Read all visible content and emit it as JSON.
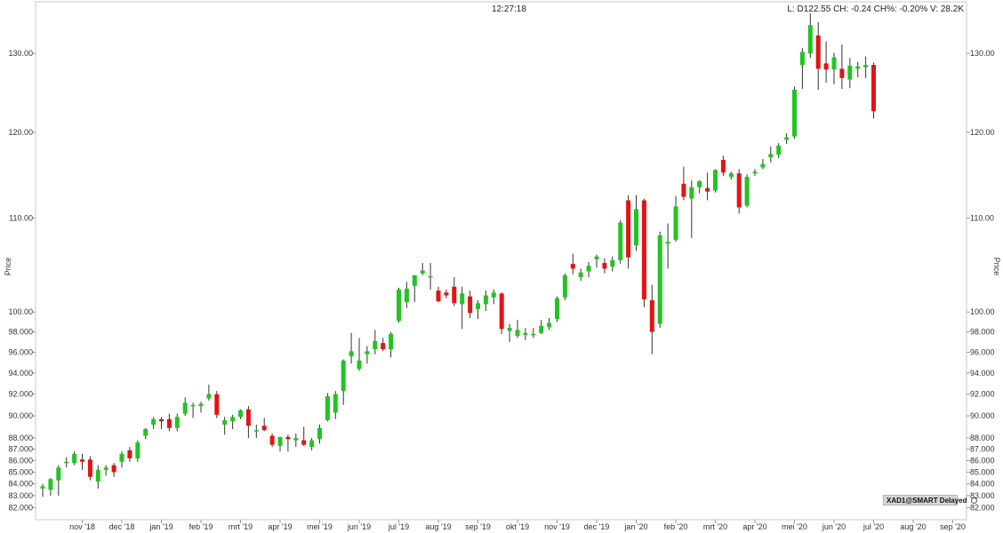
{
  "header": {
    "time": "12:27:18",
    "quote": "L: D122.55 CH: -0.24 CH%: -0.20% V: 28.2K"
  },
  "badge": {
    "label": "XAD1@SMART Delayed",
    "icon": "settings-icon"
  },
  "colors": {
    "up": "#22c422",
    "down": "#e21414",
    "wick": "#333333",
    "grid_border": "#c8c8c8"
  },
  "chart_data": {
    "type": "candlestick",
    "ylabel_left": "Price",
    "ylabel_right": "Price",
    "y_scale": "log",
    "ylim": [
      81.0,
      137.0
    ],
    "y_ticks": [
      {
        "v": 130,
        "label": "130.00"
      },
      {
        "v": 120,
        "label": "120.00"
      },
      {
        "v": 110,
        "label": "110.00"
      },
      {
        "v": 100,
        "label": "100.00"
      },
      {
        "v": 98,
        "label": "98.000"
      },
      {
        "v": 96,
        "label": "96.000"
      },
      {
        "v": 94,
        "label": "94.000"
      },
      {
        "v": 92,
        "label": "92.000"
      },
      {
        "v": 90,
        "label": "90.000"
      },
      {
        "v": 88,
        "label": "88.000"
      },
      {
        "v": 87,
        "label": "87.000"
      },
      {
        "v": 86,
        "label": "86.000"
      },
      {
        "v": 85,
        "label": "85.000"
      },
      {
        "v": 84,
        "label": "84.000"
      },
      {
        "v": 83,
        "label": "83.000"
      },
      {
        "v": 82,
        "label": "82.000"
      }
    ],
    "x_ticks": [
      {
        "i": 5,
        "label": "nov '18"
      },
      {
        "i": 10,
        "label": "dec '18"
      },
      {
        "i": 15,
        "label": "jan '19"
      },
      {
        "i": 20,
        "label": "feb '19"
      },
      {
        "i": 25,
        "label": "mrt '19"
      },
      {
        "i": 30,
        "label": "apr '19"
      },
      {
        "i": 35,
        "label": "mei '19"
      },
      {
        "i": 40,
        "label": "jun '19"
      },
      {
        "i": 45,
        "label": "jul '19"
      },
      {
        "i": 50,
        "label": "aug '19"
      },
      {
        "i": 55,
        "label": "sep '19"
      },
      {
        "i": 60,
        "label": "okt '19"
      },
      {
        "i": 65,
        "label": "nov '19"
      },
      {
        "i": 70,
        "label": "dec '19"
      },
      {
        "i": 75,
        "label": "jan '20"
      },
      {
        "i": 80,
        "label": "feb '20"
      },
      {
        "i": 85,
        "label": "mrt '20"
      },
      {
        "i": 90,
        "label": "apr '20"
      },
      {
        "i": 95,
        "label": "mei '20"
      },
      {
        "i": 100,
        "label": "jun '20"
      },
      {
        "i": 105,
        "label": "jul '20"
      },
      {
        "i": 110,
        "label": "aug '20"
      },
      {
        "i": 115,
        "label": "sep '20"
      }
    ],
    "candles": [
      {
        "o": 83.6,
        "h": 84.0,
        "l": 82.9,
        "c": 83.8
      },
      {
        "o": 83.5,
        "h": 84.5,
        "l": 83.0,
        "c": 84.4
      },
      {
        "o": 84.3,
        "h": 85.6,
        "l": 83.0,
        "c": 85.4
      },
      {
        "o": 85.8,
        "h": 86.3,
        "l": 85.4,
        "c": 85.9
      },
      {
        "o": 85.8,
        "h": 86.8,
        "l": 85.6,
        "c": 86.6
      },
      {
        "o": 86.1,
        "h": 86.6,
        "l": 85.2,
        "c": 85.9
      },
      {
        "o": 86.1,
        "h": 86.4,
        "l": 84.3,
        "c": 84.6
      },
      {
        "o": 84.2,
        "h": 85.6,
        "l": 83.6,
        "c": 85.2
      },
      {
        "o": 85.2,
        "h": 85.6,
        "l": 84.7,
        "c": 85.4
      },
      {
        "o": 85.6,
        "h": 85.8,
        "l": 84.6,
        "c": 85.0
      },
      {
        "o": 85.9,
        "h": 86.8,
        "l": 85.4,
        "c": 86.6
      },
      {
        "o": 86.9,
        "h": 87.2,
        "l": 85.9,
        "c": 86.2
      },
      {
        "o": 86.2,
        "h": 87.8,
        "l": 85.9,
        "c": 87.6
      },
      {
        "o": 88.2,
        "h": 88.9,
        "l": 87.9,
        "c": 88.8
      },
      {
        "o": 89.2,
        "h": 89.9,
        "l": 88.8,
        "c": 89.7
      },
      {
        "o": 89.7,
        "h": 89.9,
        "l": 88.8,
        "c": 89.5
      },
      {
        "o": 89.7,
        "h": 90.2,
        "l": 88.6,
        "c": 88.9
      },
      {
        "o": 88.9,
        "h": 90.2,
        "l": 88.6,
        "c": 89.9
      },
      {
        "o": 90.2,
        "h": 91.7,
        "l": 90.0,
        "c": 91.2
      },
      {
        "o": 90.9,
        "h": 91.2,
        "l": 89.8,
        "c": 91.0
      },
      {
        "o": 90.9,
        "h": 91.3,
        "l": 90.3,
        "c": 91.1
      },
      {
        "o": 91.6,
        "h": 92.9,
        "l": 91.4,
        "c": 92.0
      },
      {
        "o": 92.0,
        "h": 92.3,
        "l": 89.8,
        "c": 90.1
      },
      {
        "o": 89.2,
        "h": 89.9,
        "l": 88.3,
        "c": 89.6
      },
      {
        "o": 89.5,
        "h": 90.1,
        "l": 88.8,
        "c": 89.9
      },
      {
        "o": 89.9,
        "h": 90.6,
        "l": 89.7,
        "c": 90.5
      },
      {
        "o": 90.6,
        "h": 90.9,
        "l": 88.0,
        "c": 89.1
      },
      {
        "o": 88.7,
        "h": 89.2,
        "l": 88.0,
        "c": 88.7
      },
      {
        "o": 89.1,
        "h": 89.8,
        "l": 88.6,
        "c": 88.7
      },
      {
        "o": 88.2,
        "h": 88.4,
        "l": 87.2,
        "c": 87.4
      },
      {
        "o": 87.3,
        "h": 88.1,
        "l": 86.8,
        "c": 88.1
      },
      {
        "o": 88.1,
        "h": 88.3,
        "l": 86.8,
        "c": 87.9
      },
      {
        "o": 87.8,
        "h": 88.4,
        "l": 87.2,
        "c": 88.0
      },
      {
        "o": 87.8,
        "h": 89.0,
        "l": 87.3,
        "c": 87.4
      },
      {
        "o": 87.2,
        "h": 88.0,
        "l": 86.9,
        "c": 87.8
      },
      {
        "o": 87.9,
        "h": 89.2,
        "l": 87.5,
        "c": 88.9
      },
      {
        "o": 89.6,
        "h": 92.1,
        "l": 89.5,
        "c": 91.8
      },
      {
        "o": 90.3,
        "h": 92.3,
        "l": 89.7,
        "c": 92.0
      },
      {
        "o": 92.3,
        "h": 95.3,
        "l": 91.0,
        "c": 95.2
      },
      {
        "o": 95.6,
        "h": 97.9,
        "l": 94.9,
        "c": 96.1
      },
      {
        "o": 94.4,
        "h": 97.4,
        "l": 94.2,
        "c": 95.2
      },
      {
        "o": 95.8,
        "h": 96.6,
        "l": 94.9,
        "c": 96.1
      },
      {
        "o": 96.3,
        "h": 98.2,
        "l": 95.8,
        "c": 97.1
      },
      {
        "o": 96.9,
        "h": 97.4,
        "l": 96.1,
        "c": 96.3
      },
      {
        "o": 96.3,
        "h": 98.0,
        "l": 95.5,
        "c": 97.8
      },
      {
        "o": 99.1,
        "h": 102.5,
        "l": 98.9,
        "c": 102.3
      },
      {
        "o": 101.0,
        "h": 103.1,
        "l": 100.4,
        "c": 102.4
      },
      {
        "o": 102.7,
        "h": 103.8,
        "l": 101.0,
        "c": 103.8
      },
      {
        "o": 104.0,
        "h": 105.1,
        "l": 103.8,
        "c": 104.3
      },
      {
        "o": 103.6,
        "h": 105.1,
        "l": 102.3,
        "c": 103.7
      },
      {
        "o": 102.2,
        "h": 102.6,
        "l": 101.0,
        "c": 101.1
      },
      {
        "o": 102.0,
        "h": 102.3,
        "l": 101.4,
        "c": 101.7
      },
      {
        "o": 102.6,
        "h": 103.6,
        "l": 100.6,
        "c": 100.9
      },
      {
        "o": 100.8,
        "h": 102.6,
        "l": 98.3,
        "c": 101.9
      },
      {
        "o": 101.6,
        "h": 102.2,
        "l": 99.4,
        "c": 99.9
      },
      {
        "o": 100.3,
        "h": 101.2,
        "l": 99.3,
        "c": 100.9
      },
      {
        "o": 100.8,
        "h": 102.2,
        "l": 100.1,
        "c": 101.7
      },
      {
        "o": 101.5,
        "h": 102.3,
        "l": 100.8,
        "c": 102.0
      },
      {
        "o": 101.9,
        "h": 102.0,
        "l": 97.8,
        "c": 98.3
      },
      {
        "o": 98.1,
        "h": 98.8,
        "l": 97.0,
        "c": 98.4
      },
      {
        "o": 97.6,
        "h": 99.2,
        "l": 97.4,
        "c": 98.2
      },
      {
        "o": 97.7,
        "h": 98.4,
        "l": 97.2,
        "c": 97.9
      },
      {
        "o": 97.7,
        "h": 98.4,
        "l": 97.4,
        "c": 97.8
      },
      {
        "o": 97.9,
        "h": 99.2,
        "l": 97.8,
        "c": 98.6
      },
      {
        "o": 98.5,
        "h": 99.4,
        "l": 98.2,
        "c": 98.9
      },
      {
        "o": 99.3,
        "h": 101.6,
        "l": 99.0,
        "c": 101.4
      },
      {
        "o": 101.5,
        "h": 104.0,
        "l": 101.2,
        "c": 103.8
      },
      {
        "o": 105.0,
        "h": 106.1,
        "l": 103.9,
        "c": 104.5
      },
      {
        "o": 103.6,
        "h": 104.5,
        "l": 103.2,
        "c": 104.1
      },
      {
        "o": 104.2,
        "h": 105.2,
        "l": 103.6,
        "c": 104.8
      },
      {
        "o": 105.5,
        "h": 106.0,
        "l": 104.6,
        "c": 105.8
      },
      {
        "o": 105.1,
        "h": 105.6,
        "l": 104.0,
        "c": 104.5
      },
      {
        "o": 104.7,
        "h": 105.8,
        "l": 104.2,
        "c": 105.4
      },
      {
        "o": 105.4,
        "h": 109.8,
        "l": 105.0,
        "c": 109.5
      },
      {
        "o": 112.0,
        "h": 112.6,
        "l": 104.5,
        "c": 105.7
      },
      {
        "o": 107.0,
        "h": 112.6,
        "l": 106.4,
        "c": 111.0
      },
      {
        "o": 112.0,
        "h": 112.2,
        "l": 100.5,
        "c": 101.3
      },
      {
        "o": 101.2,
        "h": 102.8,
        "l": 95.8,
        "c": 98.0
      },
      {
        "o": 98.8,
        "h": 108.5,
        "l": 98.4,
        "c": 108.1
      },
      {
        "o": 107.2,
        "h": 109.4,
        "l": 104.5,
        "c": 107.4
      },
      {
        "o": 107.6,
        "h": 112.5,
        "l": 107.4,
        "c": 111.3
      },
      {
        "o": 113.9,
        "h": 115.9,
        "l": 112.0,
        "c": 112.4
      },
      {
        "o": 112.2,
        "h": 114.3,
        "l": 107.8,
        "c": 113.5
      },
      {
        "o": 113.5,
        "h": 114.3,
        "l": 112.8,
        "c": 114.2
      },
      {
        "o": 113.4,
        "h": 115.2,
        "l": 112.0,
        "c": 113.0
      },
      {
        "o": 113.1,
        "h": 115.6,
        "l": 112.9,
        "c": 115.5
      },
      {
        "o": 116.7,
        "h": 117.2,
        "l": 114.8,
        "c": 115.2
      },
      {
        "o": 114.7,
        "h": 115.3,
        "l": 114.4,
        "c": 115.1
      },
      {
        "o": 115.1,
        "h": 115.6,
        "l": 110.5,
        "c": 111.2
      },
      {
        "o": 111.4,
        "h": 115.0,
        "l": 111.2,
        "c": 114.7
      },
      {
        "o": 115.1,
        "h": 115.6,
        "l": 114.8,
        "c": 115.3
      },
      {
        "o": 115.8,
        "h": 116.8,
        "l": 115.6,
        "c": 116.2
      },
      {
        "o": 117.0,
        "h": 118.3,
        "l": 116.4,
        "c": 117.4
      },
      {
        "o": 117.3,
        "h": 118.7,
        "l": 116.9,
        "c": 118.4
      },
      {
        "o": 119.1,
        "h": 119.9,
        "l": 118.6,
        "c": 119.4
      },
      {
        "o": 119.5,
        "h": 125.7,
        "l": 119.2,
        "c": 125.3
      },
      {
        "o": 128.5,
        "h": 130.7,
        "l": 125.4,
        "c": 130.2
      },
      {
        "o": 130.0,
        "h": 135.4,
        "l": 129.4,
        "c": 133.8
      },
      {
        "o": 132.4,
        "h": 134.2,
        "l": 125.3,
        "c": 128.0
      },
      {
        "o": 128.7,
        "h": 131.6,
        "l": 126.2,
        "c": 127.9
      },
      {
        "o": 127.9,
        "h": 130.1,
        "l": 126.0,
        "c": 129.5
      },
      {
        "o": 128.0,
        "h": 131.2,
        "l": 125.4,
        "c": 126.8
      },
      {
        "o": 126.6,
        "h": 129.4,
        "l": 125.5,
        "c": 128.4
      },
      {
        "o": 128.0,
        "h": 128.9,
        "l": 126.9,
        "c": 128.3
      },
      {
        "o": 128.2,
        "h": 129.6,
        "l": 126.8,
        "c": 128.5
      },
      {
        "o": 128.5,
        "h": 128.8,
        "l": 121.7,
        "c": 122.6
      }
    ]
  }
}
